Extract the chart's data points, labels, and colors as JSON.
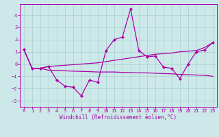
{
  "xlabel": "Windchill (Refroidissement éolien,°C)",
  "xlim": [
    -0.5,
    23.5
  ],
  "ylim": [
    -3.5,
    4.9
  ],
  "yticks": [
    -3,
    -2,
    -1,
    0,
    1,
    2,
    3,
    4
  ],
  "xticks": [
    0,
    1,
    2,
    3,
    4,
    5,
    6,
    7,
    8,
    9,
    10,
    11,
    12,
    13,
    14,
    15,
    16,
    17,
    18,
    19,
    20,
    21,
    22,
    23
  ],
  "background_color": "#cce8e8",
  "grid_color": "#a8d0d0",
  "line_color": "#aa00aa",
  "series_zigzag": [
    1.2,
    -0.35,
    -0.35,
    -0.2,
    -1.3,
    -1.8,
    -1.9,
    -2.6,
    -1.3,
    -1.5,
    1.1,
    2.0,
    2.2,
    4.5,
    1.1,
    0.6,
    0.65,
    -0.25,
    -0.35,
    -1.2,
    0.0,
    1.0,
    1.15,
    1.75
  ],
  "series_trend1": [
    1.2,
    -0.35,
    -0.35,
    -0.2,
    -0.15,
    -0.1,
    -0.05,
    0.0,
    0.05,
    0.1,
    0.2,
    0.3,
    0.4,
    0.5,
    0.6,
    0.7,
    0.8,
    0.85,
    0.9,
    1.0,
    1.05,
    1.1,
    1.35,
    1.75
  ],
  "series_trend2": [
    1.2,
    -0.35,
    -0.35,
    -0.5,
    -0.52,
    -0.55,
    -0.58,
    -0.6,
    -0.62,
    -0.65,
    -0.65,
    -0.65,
    -0.68,
    -0.7,
    -0.72,
    -0.72,
    -0.75,
    -0.78,
    -0.8,
    -0.85,
    -0.87,
    -0.9,
    -0.92,
    -1.0
  ],
  "xlabel_fontsize": 5.5,
  "tick_fontsize": 5,
  "linewidth": 0.9,
  "markersize": 2.5
}
